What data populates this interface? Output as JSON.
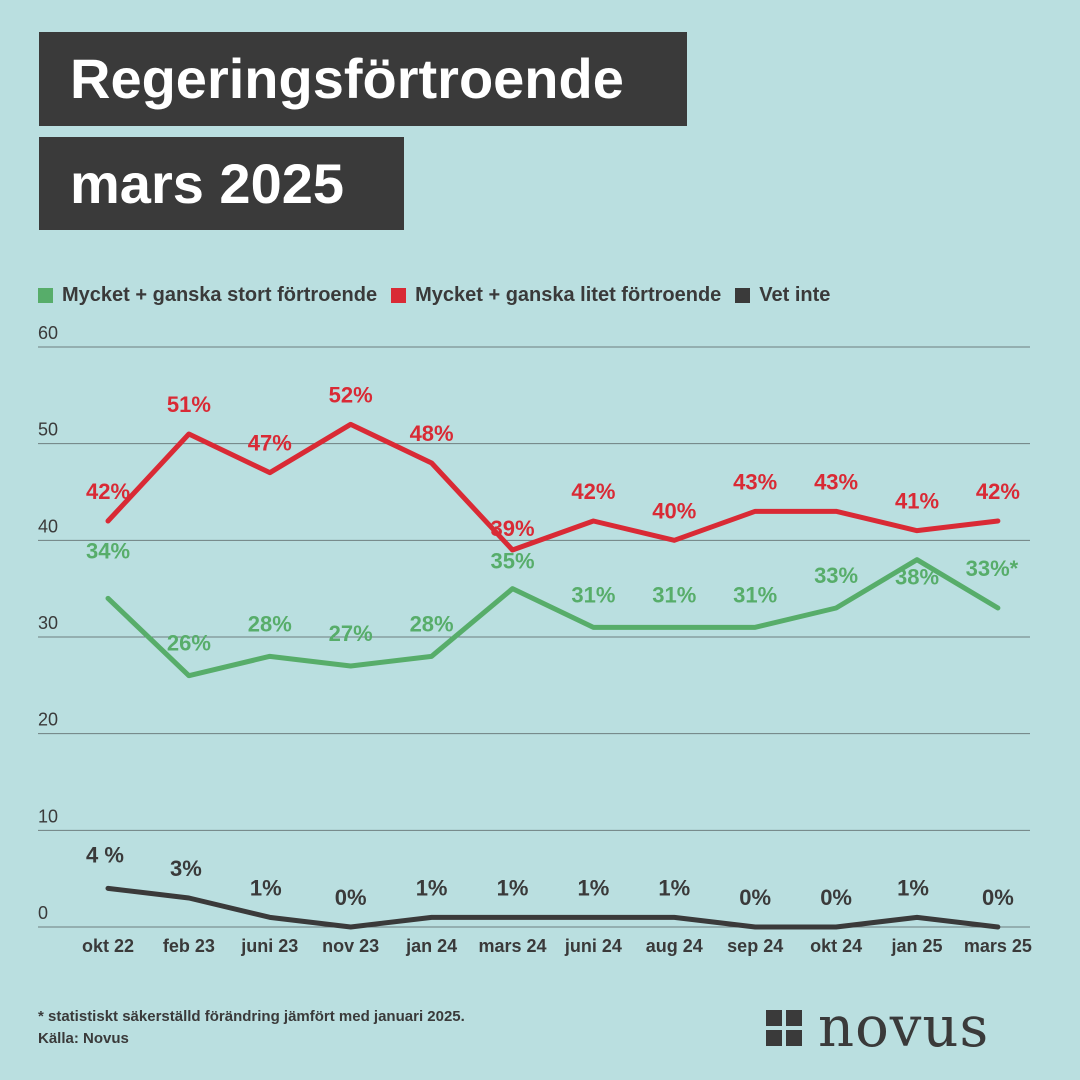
{
  "header": {
    "title_line1": "Regeringsförtroende",
    "title_line2": "mars 2025"
  },
  "legend": [
    {
      "label": "Mycket + ganska stort förtroende",
      "color": "#57ad6a"
    },
    {
      "label": "Mycket + ganska litet förtroende",
      "color": "#d92a35"
    },
    {
      "label": "Vet inte",
      "color": "#3a3a3a"
    }
  ],
  "chart_data": {
    "type": "line",
    "title": "Regeringsförtroende mars 2025",
    "xlabel": "",
    "ylabel": "",
    "ylim": [
      0,
      60
    ],
    "yticks": [
      0,
      10,
      20,
      30,
      40,
      50,
      60
    ],
    "grid": true,
    "legend_position": "top",
    "categories": [
      "okt 22",
      "feb 23",
      "juni 23",
      "nov 23",
      "jan 24",
      "mars 24",
      "juni 24",
      "aug 24",
      "sep 24",
      "okt 24",
      "jan 25",
      "mars 25"
    ],
    "series": [
      {
        "name": "Mycket + ganska stort förtroende",
        "color": "#57ad6a",
        "values": [
          34,
          26,
          28,
          27,
          28,
          35,
          31,
          31,
          31,
          33,
          38,
          33
        ],
        "labels": [
          "34%",
          "26%",
          "28%",
          "27%",
          "28%",
          "35%",
          "31%",
          "31%",
          "31%",
          "33%",
          "38%",
          "33%*"
        ]
      },
      {
        "name": "Mycket + ganska litet förtroende",
        "color": "#d92a35",
        "values": [
          42,
          51,
          47,
          52,
          48,
          39,
          42,
          40,
          43,
          43,
          41,
          42
        ],
        "labels": [
          "42%",
          "51%",
          "47%",
          "52%",
          "48%",
          "39%",
          "42%",
          "40%",
          "43%",
          "43%",
          "41%",
          "42%"
        ]
      },
      {
        "name": "Vet inte",
        "color": "#3a3a3a",
        "values": [
          4,
          3,
          1,
          0,
          1,
          1,
          1,
          1,
          0,
          0,
          1,
          0
        ],
        "labels": [
          "4 %",
          "3%",
          "1%",
          "0%",
          "1%",
          "1%",
          "1%",
          "1%",
          "0%",
          "0%",
          "1%",
          "0%"
        ]
      }
    ]
  },
  "footer": {
    "note": "* statistiskt säkerställd förändring jämfört med januari 2025.",
    "source": "Källa: Novus",
    "logo_text": "novus"
  }
}
